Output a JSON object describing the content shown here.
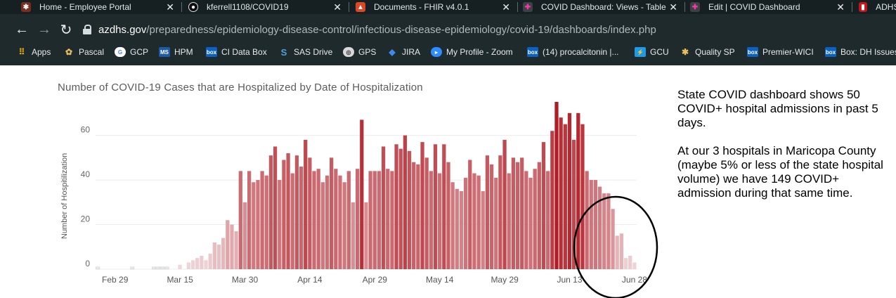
{
  "browser": {
    "tabs": [
      {
        "label": "Home - Employee Portal",
        "icon": "gear-icon",
        "close": "✕"
      },
      {
        "label": "kferrell1108/COVID19",
        "icon": "github-icon",
        "close": "✕"
      },
      {
        "label": "Documents - FHIR v4.0.1",
        "icon": "flame-icon",
        "close": "✕"
      },
      {
        "label": "COVID Dashboard: Views - Table",
        "icon": "tableau-icon",
        "close": "✕"
      },
      {
        "label": "Edit | COVID Dashboard",
        "icon": "tableau-icon",
        "close": "✕"
      },
      {
        "label": "ADHS",
        "icon": "flag-icon",
        "close": ""
      }
    ],
    "nav": {
      "back": "←",
      "forward": "→",
      "reload": "↻"
    },
    "url": {
      "host": "azdhs.gov",
      "path": "/preparedness/epidemiology-disease-control/infectious-disease-epidemiology/covid-19/dashboards/index.php"
    },
    "bookmarks": [
      {
        "label": "Apps",
        "icon": "apps-grid-icon"
      },
      {
        "label": "Pascal",
        "icon": "pascal-icon"
      },
      {
        "label": "GCP",
        "icon": "google-icon"
      },
      {
        "label": "HPM",
        "icon": "ms-icon"
      },
      {
        "label": "CI Data Box",
        "icon": "box-icon"
      },
      {
        "label": "SAS Drive",
        "icon": "sas-icon"
      },
      {
        "label": "GPS",
        "icon": "globe-icon"
      },
      {
        "label": "JIRA",
        "icon": "jira-icon"
      },
      {
        "label": "My Profile - Zoom",
        "icon": "zoom-icon"
      },
      {
        "label": "(14) procalcitonin |...",
        "icon": "box-icon"
      },
      {
        "label": "GCU",
        "icon": "bolt-icon"
      },
      {
        "label": "Quality SP",
        "icon": "gear-icon"
      },
      {
        "label": "Premier-WICI",
        "icon": "box-icon"
      },
      {
        "label": "Box: DH Issues",
        "icon": "box-icon"
      }
    ]
  },
  "colors": {
    "bar_high": "#b01c25",
    "bar_low": "#f1dcde",
    "chrome_bg": "#1f2a2c"
  },
  "chart_data": {
    "type": "bar",
    "title": "Number of COVID-19 Cases that are Hospitalized by Date of Hospitalization",
    "ylabel": "Number of Hospitilization",
    "xlabel": "",
    "ylim": [
      0,
      75
    ],
    "yticks": [
      "0",
      "20",
      "40",
      "60"
    ],
    "xtick_labels": [
      "Feb 29",
      "Mar 15",
      "Mar 30",
      "Apr 14",
      "Apr 29",
      "May 14",
      "May 29",
      "Jun 13",
      "Jun 28"
    ],
    "grid": true,
    "start_date": "2020-02-25",
    "values": [
      1,
      0,
      0,
      0,
      0,
      0,
      0,
      0,
      1,
      0,
      0,
      0,
      0,
      1,
      1,
      1,
      1,
      0,
      0,
      2,
      0,
      3,
      4,
      5,
      6,
      4,
      7,
      12,
      11,
      14,
      22,
      20,
      17,
      44,
      30,
      44,
      39,
      40,
      44,
      42,
      51,
      55,
      40,
      49,
      52,
      43,
      51,
      46,
      58,
      50,
      44,
      45,
      39,
      42,
      50,
      45,
      42,
      39,
      44,
      30,
      45,
      67,
      30,
      44,
      44,
      44,
      55,
      45,
      44,
      56,
      54,
      60,
      53,
      48,
      47,
      57,
      50,
      44,
      56,
      43,
      56,
      48,
      39,
      36,
      35,
      41,
      49,
      43,
      42,
      35,
      51,
      47,
      41,
      51,
      58,
      43,
      50,
      48,
      50,
      44,
      41,
      45,
      48,
      57,
      44,
      62,
      75,
      68,
      65,
      70,
      58,
      70,
      65,
      44,
      40,
      40,
      37,
      34,
      34,
      27,
      15,
      16,
      5,
      6,
      3
    ],
    "note_circle_label": ""
  },
  "note": {
    "para1": "State COVID dashboard shows 50 COVID+ hospital admissions in past 5 days.",
    "para2": "At our 3 hospitals in Maricopa County (maybe 5% or less of the state hospital volume) we have 149 COVID+ admission during that same time."
  }
}
